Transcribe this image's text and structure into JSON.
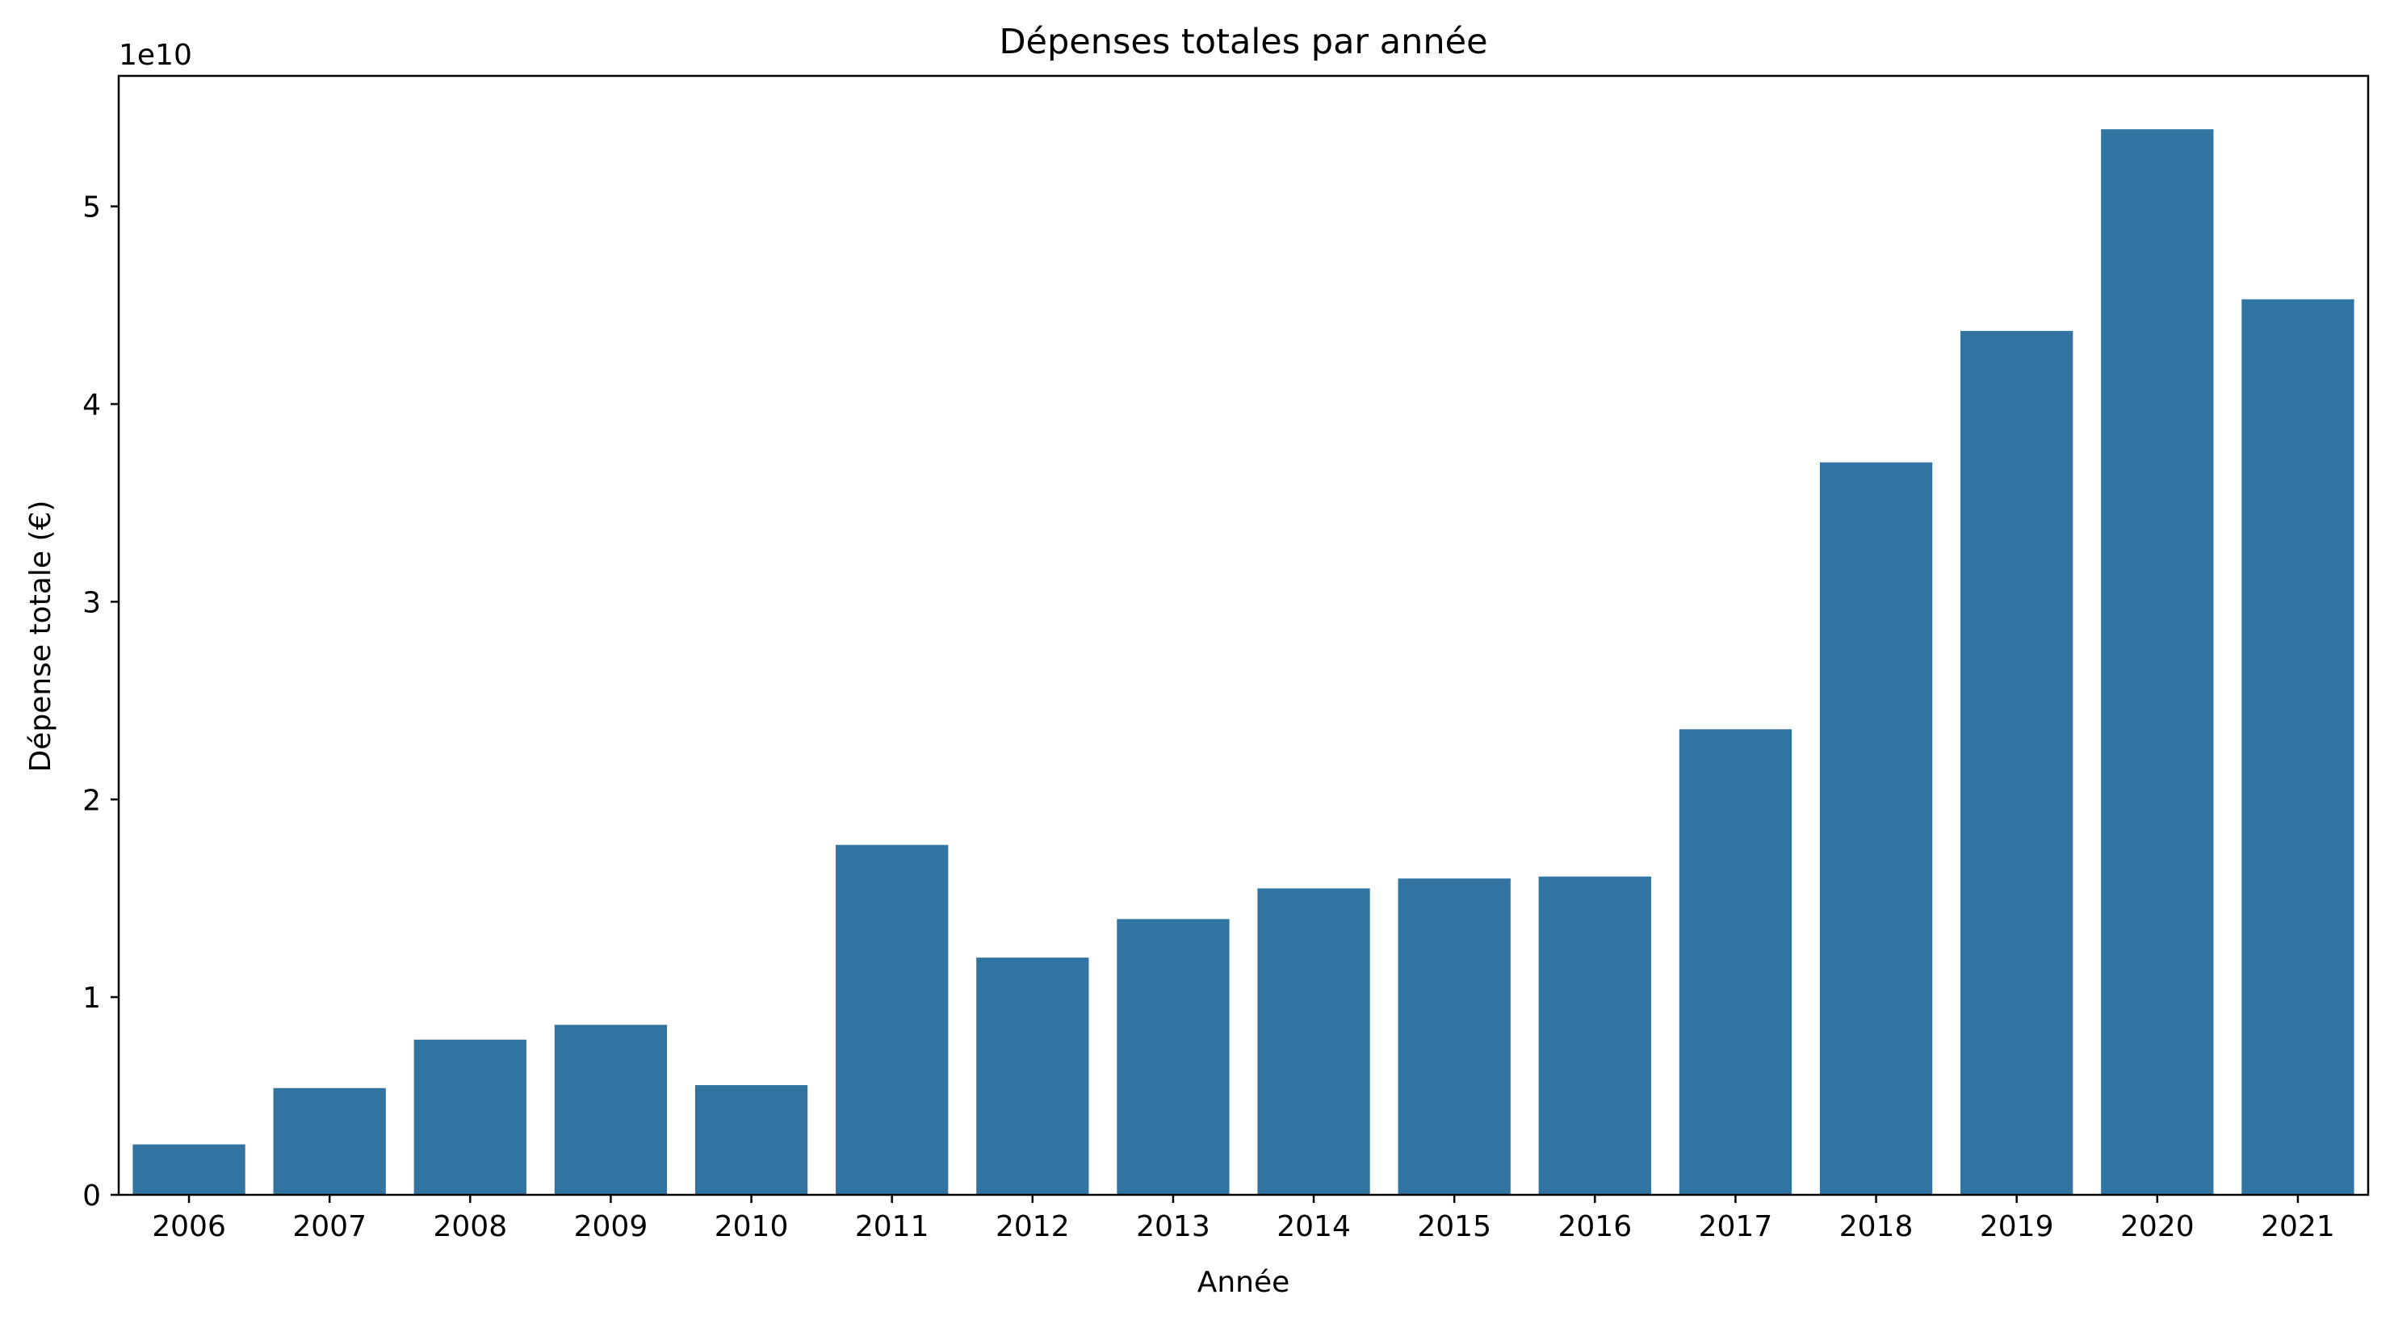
{
  "chart_data": {
    "type": "bar",
    "title": "Dépenses totales par année",
    "xlabel": "Année",
    "ylabel": "Dépense totale (€)",
    "y_offset_text": "1e10",
    "y_scale_factor": 10000000000,
    "categories": [
      "2006",
      "2007",
      "2008",
      "2009",
      "2010",
      "2011",
      "2012",
      "2013",
      "2014",
      "2015",
      "2016",
      "2017",
      "2018",
      "2019",
      "2020",
      "2021"
    ],
    "values": [
      2550000000,
      5400000000,
      7850000000,
      8600000000,
      5550000000,
      17700000000,
      12000000000,
      13950000000,
      15500000000,
      16000000000,
      16100000000,
      23550000000,
      37050000000,
      43700000000,
      53900000000,
      45300000000
    ],
    "yticks": [
      0,
      1,
      2,
      3,
      4,
      5
    ],
    "ylim": [
      0,
      56600000000
    ],
    "bar_color": "#3274a1",
    "grid": false,
    "legend": "none"
  }
}
